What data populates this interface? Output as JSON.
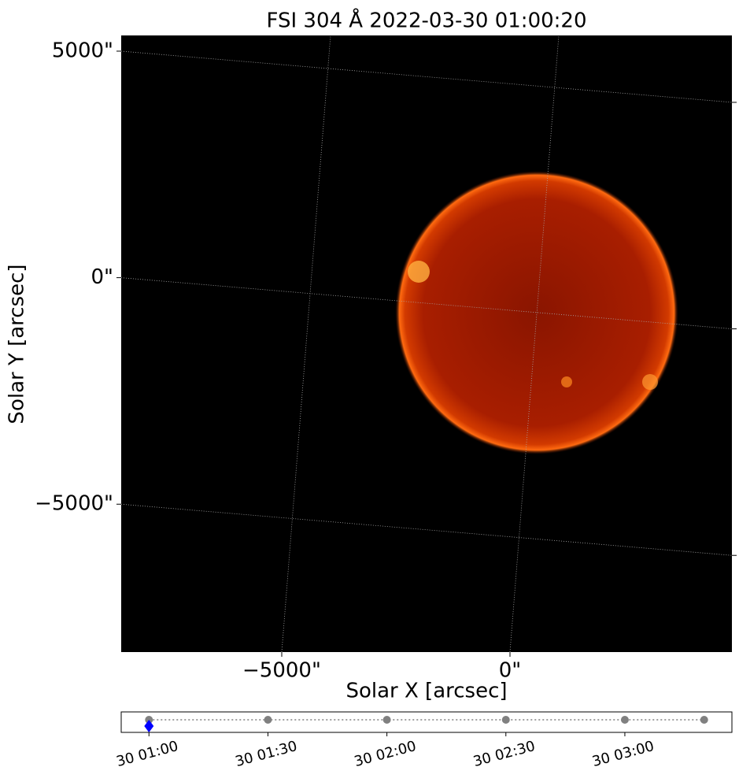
{
  "chart_data": [
    {
      "type": "image",
      "title": "FSI 304 Å 2022-03-30 01:00:20",
      "xlabel": "Solar X [arcsec]",
      "ylabel": "Solar Y [arcsec]",
      "xlim": [
        -8517,
        4862
      ],
      "ylim": [
        -8264,
        5347
      ],
      "xticks": [
        {
          "value": -5000,
          "label": "−5000\""
        },
        {
          "value": 0,
          "label": "0\""
        }
      ],
      "yticks": [
        {
          "value": 5000,
          "label": "5000\""
        },
        {
          "value": 0,
          "label": "0\""
        },
        {
          "value": -5000,
          "label": "−5000\""
        }
      ],
      "grid": true
    },
    {
      "type": "timeline",
      "x": [
        "30 01:00",
        "30 01:30",
        "30 02:00",
        "30 02:30",
        "30 03:00",
        "30 03:20"
      ],
      "color": "#808080",
      "current": "30 01:00",
      "current_color": "#0000ff",
      "xlim": [
        "30 00:53",
        "30 03:27"
      ],
      "xticks": [
        "30 01:00",
        "30 01:30",
        "30 02:00",
        "30 02:30",
        "30 03:00"
      ]
    }
  ]
}
